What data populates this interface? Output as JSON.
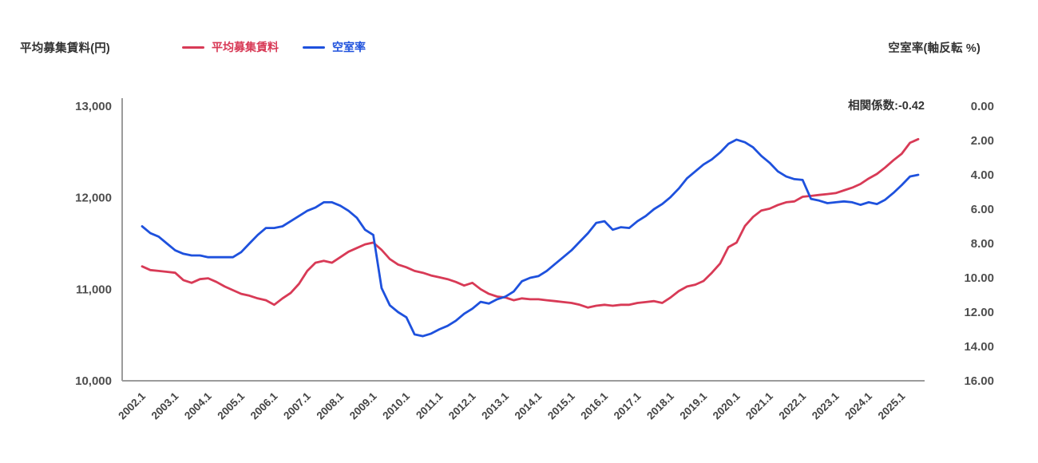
{
  "header": {
    "left_axis_title": "平均募集賃料(円)",
    "right_axis_title": "空室率(軸反転 %)",
    "legend": [
      {
        "label": "平均募集賃料",
        "color": "#d83a56"
      },
      {
        "label": "空室率",
        "color": "#1e51dd"
      }
    ]
  },
  "annotation": {
    "correlation_label": "相関係数:-0.42"
  },
  "colors": {
    "rent_line": "#d83a56",
    "vacancy_line": "#1e51dd",
    "axis_line": "#9b9b9b"
  },
  "chart_data": {
    "type": "line",
    "title": "",
    "xlabel": "",
    "ylabel_left": "平均募集賃料(円)",
    "ylabel_right": "空室率(軸反転 %)",
    "grid": false,
    "legend_position": "top",
    "correlation": -0.42,
    "left_axis": {
      "range": [
        10000,
        13000
      ],
      "ticks": [
        "13,000",
        "12,000",
        "11,000",
        "10,000"
      ],
      "inverted": false
    },
    "right_axis": {
      "range": [
        0,
        16
      ],
      "ticks": [
        "0.00",
        "2.00",
        "4.00",
        "6.00",
        "8.00",
        "10.00",
        "12.00",
        "14.00",
        "16.00"
      ],
      "inverted": true
    },
    "x_tick_labels": [
      "2002.1",
      "2003.1",
      "2004.1",
      "2005.1",
      "2006.1",
      "2007.1",
      "2008.1",
      "2009.1",
      "2010.1",
      "2011.1",
      "2012.1",
      "2013.1",
      "2014.1",
      "2015.1",
      "2016.1",
      "2017.1",
      "2018.1",
      "2019.1",
      "2020.1",
      "2021.1",
      "2022.1",
      "2023.1",
      "2024.1",
      "2025.1"
    ],
    "categories": [
      "2002.1",
      "2002.4",
      "2002.7",
      "2002.10",
      "2003.1",
      "2003.4",
      "2003.7",
      "2003.10",
      "2004.1",
      "2004.4",
      "2004.7",
      "2004.10",
      "2005.1",
      "2005.4",
      "2005.7",
      "2005.10",
      "2006.1",
      "2006.4",
      "2006.7",
      "2006.10",
      "2007.1",
      "2007.4",
      "2007.7",
      "2007.10",
      "2008.1",
      "2008.4",
      "2008.7",
      "2008.10",
      "2009.1",
      "2009.4",
      "2009.7",
      "2009.10",
      "2010.1",
      "2010.4",
      "2010.7",
      "2010.10",
      "2011.1",
      "2011.4",
      "2011.7",
      "2011.10",
      "2012.1",
      "2012.4",
      "2012.7",
      "2012.10",
      "2013.1",
      "2013.4",
      "2013.7",
      "2013.10",
      "2014.1",
      "2014.4",
      "2014.7",
      "2014.10",
      "2015.1",
      "2015.4",
      "2015.7",
      "2015.10",
      "2016.1",
      "2016.4",
      "2016.7",
      "2016.10",
      "2017.1",
      "2017.4",
      "2017.7",
      "2017.10",
      "2018.1",
      "2018.4",
      "2018.7",
      "2018.10",
      "2019.1",
      "2019.4",
      "2019.7",
      "2019.10",
      "2020.1",
      "2020.4",
      "2020.7",
      "2020.10",
      "2021.1",
      "2021.4",
      "2021.7",
      "2021.10",
      "2022.1",
      "2022.4",
      "2022.7",
      "2022.10",
      "2023.1",
      "2023.4",
      "2023.7",
      "2023.10",
      "2024.1",
      "2024.4",
      "2024.7",
      "2024.10",
      "2025.1",
      "2025.4",
      "2025.7"
    ],
    "series": [
      {
        "name": "平均募集賃料",
        "axis": "left",
        "unit": "円",
        "color": "#d83a56",
        "values": [
          11250,
          11210,
          11200,
          11190,
          11180,
          11100,
          11070,
          11110,
          11120,
          11080,
          11030,
          10990,
          10950,
          10930,
          10900,
          10880,
          10830,
          10900,
          10960,
          11060,
          11200,
          11290,
          11310,
          11290,
          11350,
          11410,
          11450,
          11490,
          11510,
          11430,
          11330,
          11270,
          11240,
          11200,
          11180,
          11150,
          11130,
          11110,
          11080,
          11040,
          11070,
          11000,
          10950,
          10920,
          10910,
          10880,
          10900,
          10890,
          10890,
          10880,
          10870,
          10860,
          10850,
          10830,
          10800,
          10820,
          10830,
          10820,
          10830,
          10830,
          10850,
          10860,
          10870,
          10850,
          10910,
          10980,
          11030,
          11050,
          11090,
          11180,
          11280,
          11460,
          11510,
          11690,
          11790,
          11860,
          11880,
          11920,
          11950,
          11960,
          12010,
          12020,
          12030,
          12040,
          12050,
          12080,
          12110,
          12150,
          12210,
          12260,
          12330,
          12410,
          12480,
          12600,
          12640
        ]
      },
      {
        "name": "空室率",
        "axis": "right",
        "unit": "%",
        "color": "#1e51dd",
        "values": [
          7.0,
          7.4,
          7.6,
          8.0,
          8.4,
          8.6,
          8.7,
          8.7,
          8.8,
          8.8,
          8.8,
          8.8,
          8.5,
          8.0,
          7.5,
          7.1,
          7.1,
          7.0,
          6.7,
          6.4,
          6.1,
          5.9,
          5.6,
          5.6,
          5.8,
          6.1,
          6.5,
          7.2,
          7.5,
          10.6,
          11.6,
          12.0,
          12.3,
          13.3,
          13.4,
          13.25,
          13.0,
          12.8,
          12.5,
          12.1,
          11.8,
          11.4,
          11.5,
          11.25,
          11.1,
          10.8,
          10.2,
          10.0,
          9.9,
          9.6,
          9.2,
          8.8,
          8.4,
          7.9,
          7.4,
          6.8,
          6.7,
          7.2,
          7.05,
          7.1,
          6.7,
          6.4,
          6.0,
          5.7,
          5.3,
          4.8,
          4.2,
          3.8,
          3.4,
          3.1,
          2.7,
          2.2,
          1.95,
          2.1,
          2.4,
          2.9,
          3.3,
          3.8,
          4.1,
          4.25,
          4.3,
          5.4,
          5.5,
          5.65,
          5.6,
          5.55,
          5.6,
          5.75,
          5.6,
          5.7,
          5.45,
          5.05,
          4.6,
          4.1,
          4.0
        ]
      }
    ]
  }
}
